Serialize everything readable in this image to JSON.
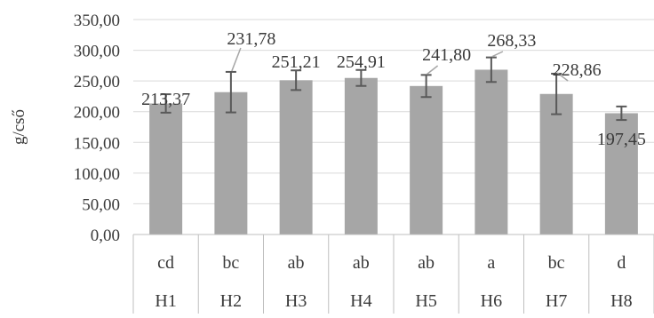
{
  "chart_data": {
    "type": "bar",
    "ylabel": "g/cső",
    "ylim": [
      0,
      350
    ],
    "ytick_step": 50,
    "ytick_labels": [
      "0,00",
      "50,00",
      "100,00",
      "150,00",
      "200,00",
      "250,00",
      "300,00",
      "350,00"
    ],
    "grid": true,
    "legend": "none",
    "categories": [
      "H1",
      "H2",
      "H3",
      "H4",
      "H5",
      "H6",
      "H7",
      "H8"
    ],
    "group_letters": [
      "cd",
      "bc",
      "ab",
      "ab",
      "ab",
      "a",
      "bc",
      "d"
    ],
    "values": [
      213.37,
      231.78,
      251.21,
      254.91,
      241.8,
      268.33,
      228.86,
      197.45
    ],
    "value_labels": [
      "213,37",
      "231,78",
      "251,21",
      "254,91",
      "241,80",
      "268,33",
      "228,86",
      "197,45"
    ],
    "errors": [
      15,
      33,
      16,
      13,
      18,
      20,
      33,
      11
    ],
    "colors": {
      "bar": "#a6a6a6",
      "error": "#595959",
      "grid": "#d9d9d9",
      "axis": "#bfbfbf",
      "leader": "#a6a6a6"
    }
  }
}
